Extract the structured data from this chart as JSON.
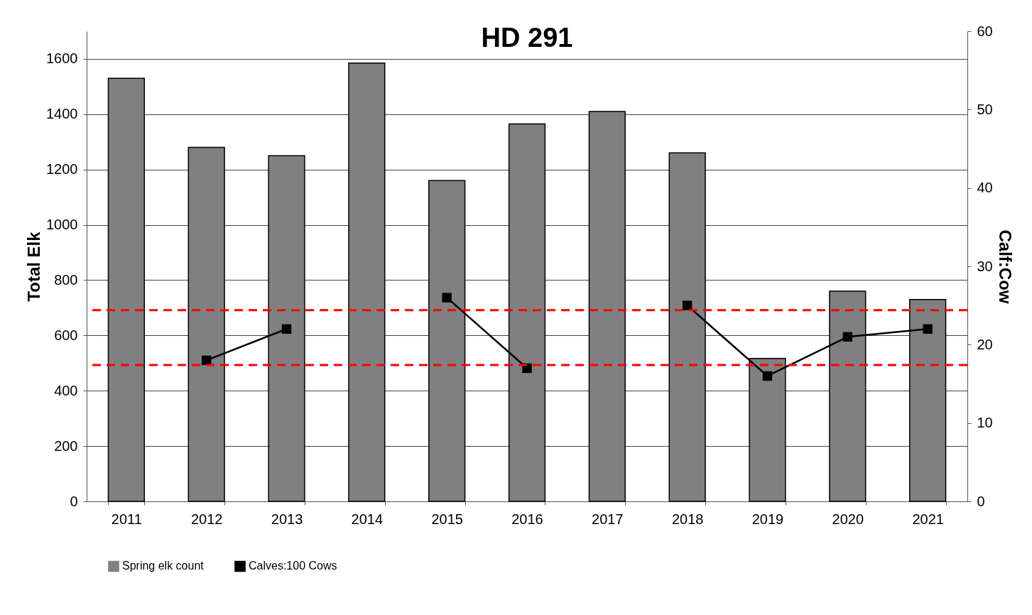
{
  "chart_data": {
    "type": "bar",
    "title": "HD 291",
    "ylabel": "Total Elk",
    "y2label": "Calf:Cow",
    "categories": [
      "2011",
      "2012",
      "2013",
      "2014",
      "2015",
      "2016",
      "2017",
      "2018",
      "2019",
      "2020",
      "2021"
    ],
    "series": [
      {
        "name": "Spring elk count",
        "color": "#808080",
        "values": [
          1530,
          1280,
          1250,
          1585,
          1160,
          1365,
          1410,
          1260,
          517,
          760,
          730
        ]
      },
      {
        "name": "Calves:100 Cows",
        "type": "line",
        "axis": "y2",
        "color": "#000000",
        "marker": "square",
        "values": [
          null,
          18,
          22,
          null,
          26,
          17,
          null,
          25,
          16,
          21,
          22
        ]
      }
    ],
    "ylim": [
      0,
      1700
    ],
    "yticks": [
      0,
      200,
      400,
      600,
      800,
      1000,
      1200,
      1400,
      1600
    ],
    "y2lim": [
      0,
      60
    ],
    "y2ticks": [
      0,
      10,
      20,
      30,
      40,
      50,
      60
    ],
    "ref_lines": [
      {
        "axis": "y2",
        "value": 24.4,
        "color": "#ff0000",
        "line_style": "dashed"
      },
      {
        "axis": "y2",
        "value": 17.4,
        "color": "#ff0000",
        "line_style": "dashed"
      }
    ],
    "grid": "y",
    "legend": "bottom"
  }
}
